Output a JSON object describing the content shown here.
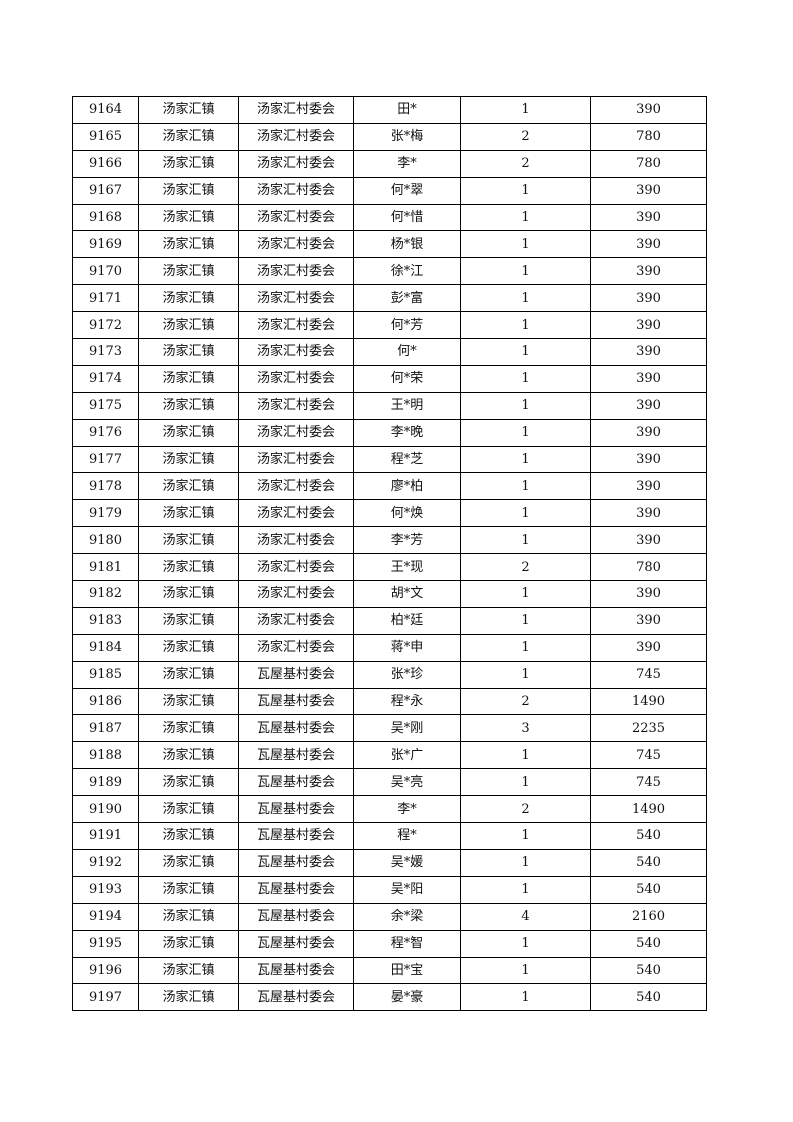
{
  "rows": [
    [
      "9164",
      "汤家汇镇",
      "汤家汇村委会",
      "田*",
      "1",
      "390"
    ],
    [
      "9165",
      "汤家汇镇",
      "汤家汇村委会",
      "张*梅",
      "2",
      "780"
    ],
    [
      "9166",
      "汤家汇镇",
      "汤家汇村委会",
      "李*",
      "2",
      "780"
    ],
    [
      "9167",
      "汤家汇镇",
      "汤家汇村委会",
      "何*翠",
      "1",
      "390"
    ],
    [
      "9168",
      "汤家汇镇",
      "汤家汇村委会",
      "何*惜",
      "1",
      "390"
    ],
    [
      "9169",
      "汤家汇镇",
      "汤家汇村委会",
      "杨*银",
      "1",
      "390"
    ],
    [
      "9170",
      "汤家汇镇",
      "汤家汇村委会",
      "徐*江",
      "1",
      "390"
    ],
    [
      "9171",
      "汤家汇镇",
      "汤家汇村委会",
      "彭*富",
      "1",
      "390"
    ],
    [
      "9172",
      "汤家汇镇",
      "汤家汇村委会",
      "何*芳",
      "1",
      "390"
    ],
    [
      "9173",
      "汤家汇镇",
      "汤家汇村委会",
      "何*",
      "1",
      "390"
    ],
    [
      "9174",
      "汤家汇镇",
      "汤家汇村委会",
      "何*荣",
      "1",
      "390"
    ],
    [
      "9175",
      "汤家汇镇",
      "汤家汇村委会",
      "王*明",
      "1",
      "390"
    ],
    [
      "9176",
      "汤家汇镇",
      "汤家汇村委会",
      "李*晚",
      "1",
      "390"
    ],
    [
      "9177",
      "汤家汇镇",
      "汤家汇村委会",
      "程*芝",
      "1",
      "390"
    ],
    [
      "9178",
      "汤家汇镇",
      "汤家汇村委会",
      "廖*柏",
      "1",
      "390"
    ],
    [
      "9179",
      "汤家汇镇",
      "汤家汇村委会",
      "何*焕",
      "1",
      "390"
    ],
    [
      "9180",
      "汤家汇镇",
      "汤家汇村委会",
      "李*芳",
      "1",
      "390"
    ],
    [
      "9181",
      "汤家汇镇",
      "汤家汇村委会",
      "王*现",
      "2",
      "780"
    ],
    [
      "9182",
      "汤家汇镇",
      "汤家汇村委会",
      "胡*文",
      "1",
      "390"
    ],
    [
      "9183",
      "汤家汇镇",
      "汤家汇村委会",
      "柏*廷",
      "1",
      "390"
    ],
    [
      "9184",
      "汤家汇镇",
      "汤家汇村委会",
      "蒋*申",
      "1",
      "390"
    ],
    [
      "9185",
      "汤家汇镇",
      "瓦屋基村委会",
      "张*珍",
      "1",
      "745"
    ],
    [
      "9186",
      "汤家汇镇",
      "瓦屋基村委会",
      "程*永",
      "2",
      "1490"
    ],
    [
      "9187",
      "汤家汇镇",
      "瓦屋基村委会",
      "吴*刚",
      "3",
      "2235"
    ],
    [
      "9188",
      "汤家汇镇",
      "瓦屋基村委会",
      "张*广",
      "1",
      "745"
    ],
    [
      "9189",
      "汤家汇镇",
      "瓦屋基村委会",
      "吴*亮",
      "1",
      "745"
    ],
    [
      "9190",
      "汤家汇镇",
      "瓦屋基村委会",
      "李*",
      "2",
      "1490"
    ],
    [
      "9191",
      "汤家汇镇",
      "瓦屋基村委会",
      "程*",
      "1",
      "540"
    ],
    [
      "9192",
      "汤家汇镇",
      "瓦屋基村委会",
      "吴*媛",
      "1",
      "540"
    ],
    [
      "9193",
      "汤家汇镇",
      "瓦屋基村委会",
      "吴*阳",
      "1",
      "540"
    ],
    [
      "9194",
      "汤家汇镇",
      "瓦屋基村委会",
      "余*梁",
      "4",
      "2160"
    ],
    [
      "9195",
      "汤家汇镇",
      "瓦屋基村委会",
      "程*智",
      "1",
      "540"
    ],
    [
      "9196",
      "汤家汇镇",
      "瓦屋基村委会",
      "田*宝",
      "1",
      "540"
    ],
    [
      "9197",
      "汤家汇镇",
      "瓦屋基村委会",
      "晏*豪",
      "1",
      "540"
    ]
  ]
}
